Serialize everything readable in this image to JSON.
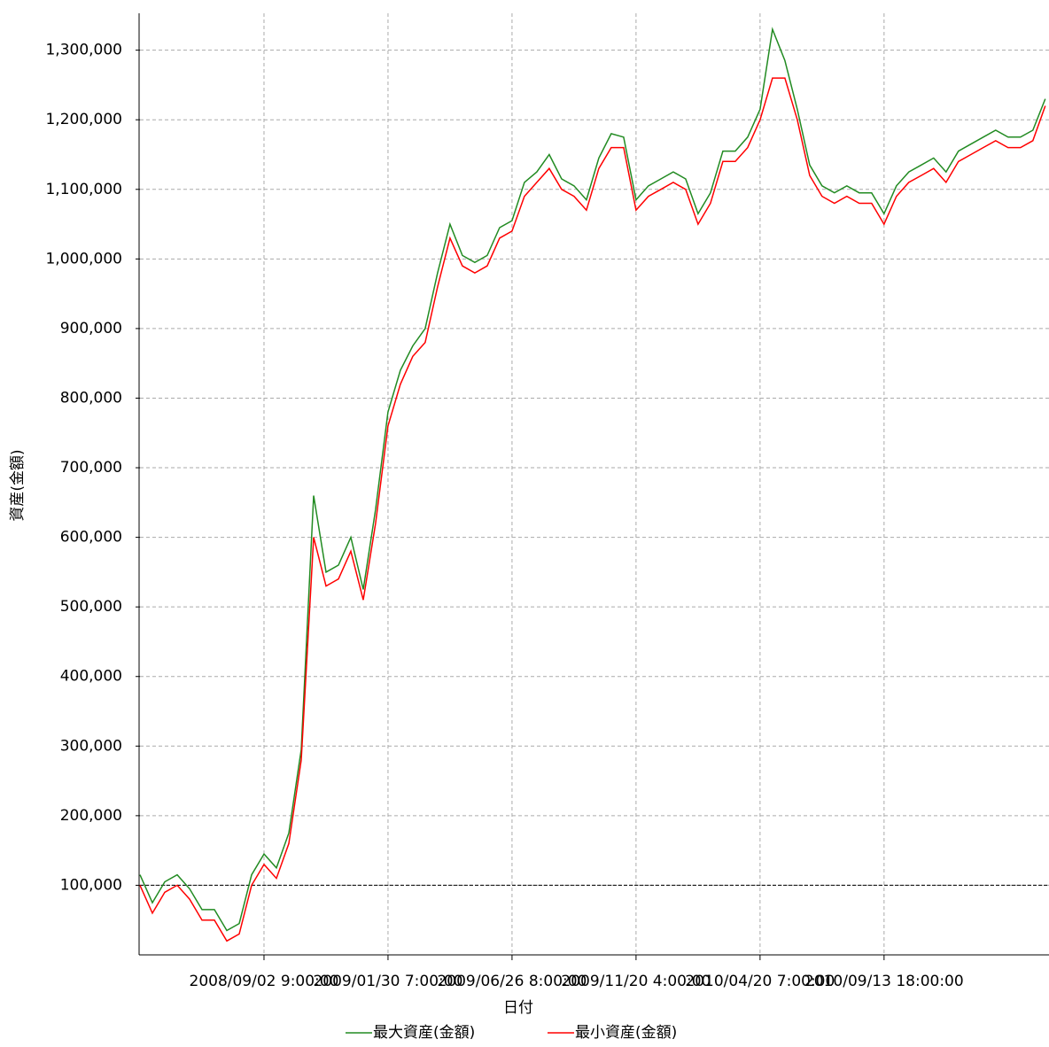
{
  "chart_data": {
    "type": "line",
    "x_label": "日付",
    "y_label": "資産(金額)",
    "x": [
      0,
      1,
      2,
      3,
      4,
      5,
      6,
      7,
      8,
      9,
      10,
      11,
      12,
      13,
      14,
      15,
      16,
      17,
      18,
      19,
      20,
      21,
      22,
      23,
      24,
      25,
      26,
      27,
      28,
      29,
      30,
      31,
      32,
      33,
      34,
      35,
      36,
      37,
      38,
      39,
      40,
      41,
      42,
      43,
      44,
      45,
      46,
      47,
      48,
      49,
      50,
      51,
      52,
      53,
      54,
      55,
      56,
      57,
      58,
      59,
      60,
      61,
      62,
      63,
      64,
      65,
      66,
      67,
      68,
      69,
      70,
      71,
      72,
      73
    ],
    "series": [
      {
        "name": "最大資産(金額)",
        "color": "#228b22",
        "values": [
          115000,
          75000,
          105000,
          115000,
          95000,
          65000,
          65000,
          35000,
          45000,
          115000,
          145000,
          125000,
          175000,
          295000,
          660000,
          550000,
          560000,
          600000,
          525000,
          640000,
          780000,
          840000,
          875000,
          900000,
          980000,
          1050000,
          1005000,
          995000,
          1005000,
          1045000,
          1055000,
          1110000,
          1125000,
          1150000,
          1115000,
          1105000,
          1085000,
          1145000,
          1180000,
          1175000,
          1085000,
          1105000,
          1115000,
          1125000,
          1115000,
          1065000,
          1095000,
          1155000,
          1155000,
          1175000,
          1215000,
          1330000,
          1285000,
          1215000,
          1135000,
          1105000,
          1095000,
          1105000,
          1095000,
          1095000,
          1065000,
          1105000,
          1125000,
          1135000,
          1145000,
          1125000,
          1155000,
          1165000,
          1175000,
          1185000,
          1175000,
          1175000,
          1185000,
          1230000
        ]
      },
      {
        "name": "最小資産(金額)",
        "color": "#ff0000",
        "values": [
          100000,
          60000,
          90000,
          100000,
          80000,
          50000,
          50000,
          20000,
          30000,
          100000,
          130000,
          110000,
          160000,
          280000,
          600000,
          530000,
          540000,
          580000,
          510000,
          620000,
          760000,
          820000,
          860000,
          880000,
          960000,
          1030000,
          990000,
          980000,
          990000,
          1030000,
          1040000,
          1090000,
          1110000,
          1130000,
          1100000,
          1090000,
          1070000,
          1130000,
          1160000,
          1160000,
          1070000,
          1090000,
          1100000,
          1110000,
          1100000,
          1050000,
          1080000,
          1140000,
          1140000,
          1160000,
          1200000,
          1260000,
          1260000,
          1200000,
          1120000,
          1090000,
          1080000,
          1090000,
          1080000,
          1080000,
          1050000,
          1090000,
          1110000,
          1120000,
          1130000,
          1110000,
          1140000,
          1150000,
          1160000,
          1170000,
          1160000,
          1160000,
          1170000,
          1220000
        ]
      }
    ],
    "xlim": [
      0,
      73.3
    ],
    "xticks": [
      {
        "value": 10,
        "label": "2008/09/02 9:00:00"
      },
      {
        "value": 20,
        "label": "2009/01/30 7:00:00"
      },
      {
        "value": 30,
        "label": "2009/06/26 8:00:00"
      },
      {
        "value": 40,
        "label": "2009/11/20 4:00:00"
      },
      {
        "value": 50,
        "label": "2010/04/20 7:00:00"
      },
      {
        "value": 60,
        "label": "2010/09/13 18:00:00"
      }
    ],
    "ylim": [
      0,
      1353000
    ],
    "yticks": [
      {
        "value": 100000,
        "label": "100,000"
      },
      {
        "value": 200000,
        "label": "200,000"
      },
      {
        "value": 300000,
        "label": "300,000"
      },
      {
        "value": 400000,
        "label": "400,000"
      },
      {
        "value": 500000,
        "label": "500,000"
      },
      {
        "value": 600000,
        "label": "600,000"
      },
      {
        "value": 700000,
        "label": "700,000"
      },
      {
        "value": 800000,
        "label": "800,000"
      },
      {
        "value": 900000,
        "label": "900,000"
      },
      {
        "value": 1000000,
        "label": "1,000,000"
      },
      {
        "value": 1100000,
        "label": "1,100,000"
      },
      {
        "value": 1200000,
        "label": "1,200,000"
      },
      {
        "value": 1300000,
        "label": "1,300,000"
      }
    ],
    "grid": true,
    "reference_line": 100000,
    "legend": "bottom"
  }
}
